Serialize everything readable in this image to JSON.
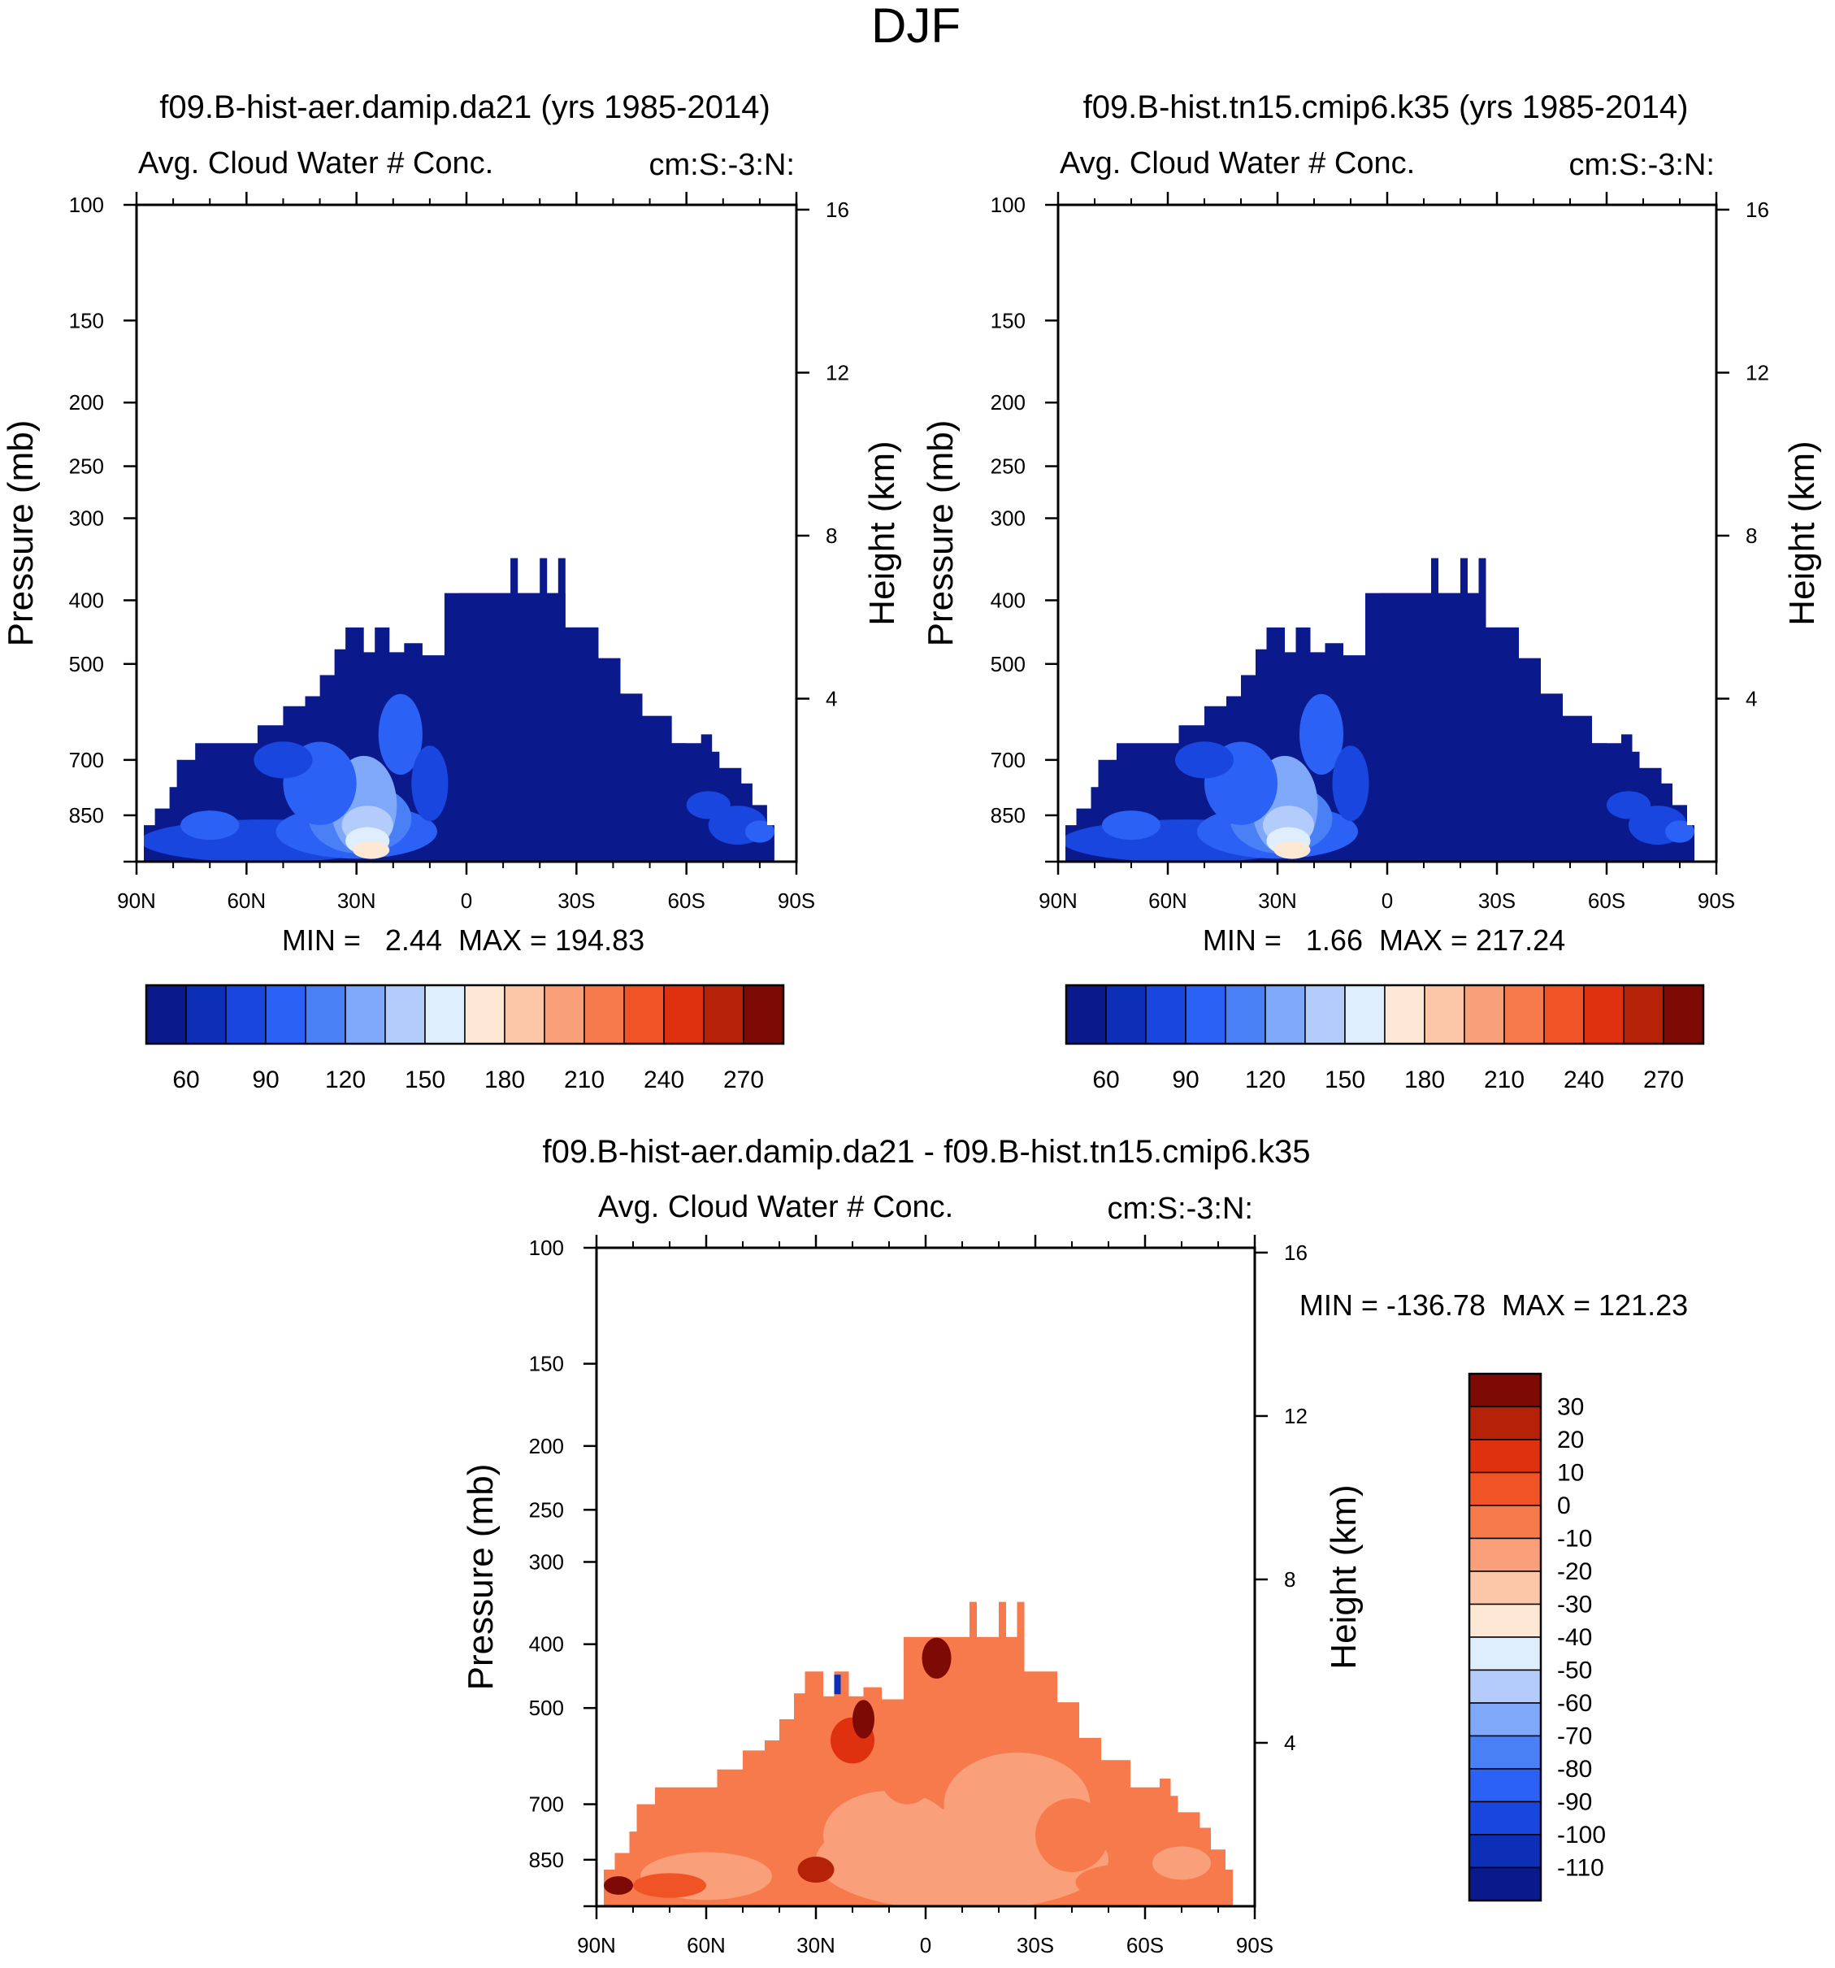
{
  "figure": {
    "season": "DJF"
  },
  "chart_data": [
    {
      "type": "contour",
      "title": "f09.B-hist-aer.damip.da21 (yrs 1985-2014)",
      "left_label": "Avg. Cloud Water # Conc.",
      "right_label": "cm:S:-3:N:",
      "ylabel": "Pressure (mb)",
      "y2label": "Height (km)",
      "y_ticks": [
        "100",
        "150",
        "200",
        "250",
        "300",
        "400",
        "500",
        "700",
        "850"
      ],
      "y2_ticks": [
        "16",
        "12",
        "8",
        "4"
      ],
      "x_ticks": [
        "90N",
        "60N",
        "30N",
        "0",
        "30S",
        "60S",
        "90S"
      ],
      "ylim": [
        1000,
        100
      ],
      "xlim": [
        90,
        -90
      ],
      "min_text": "MIN =   2.44  MAX = 194.83",
      "min": 2.44,
      "max": 194.83,
      "colorbar_labels": [
        "60",
        "90",
        "120",
        "150",
        "180",
        "210",
        "240",
        "270"
      ],
      "colorbar_colors": [
        "#0a1a8c",
        "#0d2fb8",
        "#1a46e0",
        "#2b61f5",
        "#4a80f5",
        "#80a8f8",
        "#b3ccfb",
        "#dfeefd",
        "#fde8d6",
        "#fbc7a8",
        "#f9a07a",
        "#f77a4c",
        "#f05326",
        "#df3010",
        "#b52208",
        "#7d0a05"
      ]
    },
    {
      "type": "contour",
      "title": "f09.B-hist.tn15.cmip6.k35 (yrs 1985-2014)",
      "left_label": "Avg. Cloud Water # Conc.",
      "right_label": "cm:S:-3:N:",
      "ylabel": "Pressure (mb)",
      "y2label": "Height (km)",
      "y_ticks": [
        "100",
        "150",
        "200",
        "250",
        "300",
        "400",
        "500",
        "700",
        "850"
      ],
      "y2_ticks": [
        "16",
        "12",
        "8",
        "4"
      ],
      "x_ticks": [
        "90N",
        "60N",
        "30N",
        "0",
        "30S",
        "60S",
        "90S"
      ],
      "ylim": [
        1000,
        100
      ],
      "xlim": [
        90,
        -90
      ],
      "min_text": "MIN =   1.66  MAX = 217.24",
      "min": 1.66,
      "max": 217.24,
      "colorbar_labels": [
        "60",
        "90",
        "120",
        "150",
        "180",
        "210",
        "240",
        "270"
      ],
      "colorbar_colors": [
        "#0a1a8c",
        "#0d2fb8",
        "#1a46e0",
        "#2b61f5",
        "#4a80f5",
        "#80a8f8",
        "#b3ccfb",
        "#dfeefd",
        "#fde8d6",
        "#fbc7a8",
        "#f9a07a",
        "#f77a4c",
        "#f05326",
        "#df3010",
        "#b52208",
        "#7d0a05"
      ]
    },
    {
      "type": "contour",
      "title": "f09.B-hist-aer.damip.da21 - f09.B-hist.tn15.cmip6.k35",
      "left_label": "Avg. Cloud Water # Conc.",
      "right_label": "cm:S:-3:N:",
      "ylabel": "Pressure (mb)",
      "y2label": "Height (km)",
      "y_ticks": [
        "100",
        "150",
        "200",
        "250",
        "300",
        "400",
        "500",
        "700",
        "850"
      ],
      "y2_ticks": [
        "16",
        "12",
        "8",
        "4"
      ],
      "x_ticks": [
        "90N",
        "60N",
        "30N",
        "0",
        "30S",
        "60S",
        "90S"
      ],
      "ylim": [
        1000,
        100
      ],
      "xlim": [
        90,
        -90
      ],
      "min_text": "MIN = -136.78  MAX = 121.23",
      "min": -136.78,
      "max": 121.23,
      "colorbar_labels": [
        "30",
        "20",
        "10",
        "0",
        "-10",
        "-20",
        "-30",
        "-40",
        "-50",
        "-60",
        "-70",
        "-80",
        "-90",
        "-100",
        "-110"
      ],
      "colorbar_colors": [
        "#7d0a05",
        "#b52208",
        "#df3010",
        "#f05326",
        "#f77a4c",
        "#f9a07a",
        "#fbc7a8",
        "#fde8d6",
        "#dfeefd",
        "#b3ccfb",
        "#80a8f8",
        "#4a80f5",
        "#2b61f5",
        "#1a46e0",
        "#0d2fb8",
        "#0a1a8c"
      ]
    }
  ]
}
